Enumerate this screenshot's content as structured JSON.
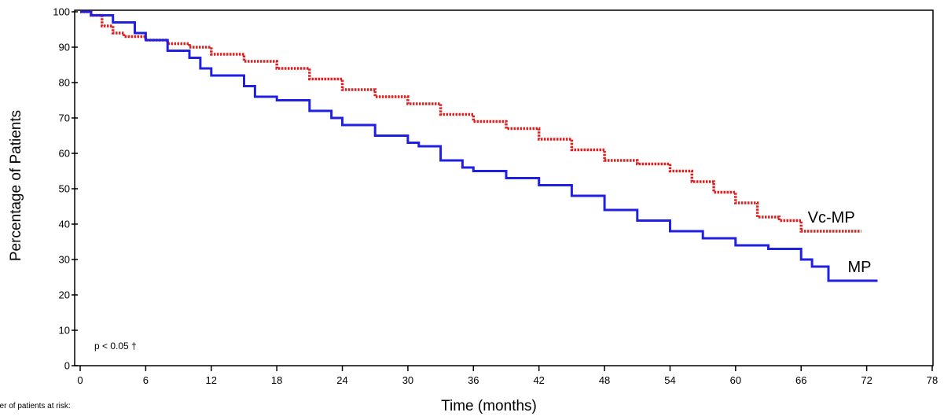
{
  "chart_data": {
    "type": "line",
    "title": "",
    "xlabel": "Time (months)",
    "ylabel": "Percentage of Patients",
    "xlim": [
      0,
      78
    ],
    "ylim": [
      0,
      100
    ],
    "x_ticks": [
      0,
      6,
      12,
      18,
      24,
      30,
      36,
      42,
      48,
      54,
      60,
      66,
      72,
      78
    ],
    "y_ticks": [
      0,
      10,
      20,
      30,
      40,
      50,
      60,
      70,
      80,
      90,
      100
    ],
    "annotation": "p < 0.05 †",
    "footer_text": "ber of patients at risk:",
    "grid": false,
    "step": true,
    "series": [
      {
        "name": "Vc-MP",
        "color": "#e02020",
        "style": "dotted",
        "points": [
          [
            0,
            100
          ],
          [
            1,
            99
          ],
          [
            2,
            96
          ],
          [
            3,
            94
          ],
          [
            4,
            93
          ],
          [
            6,
            92
          ],
          [
            8,
            91
          ],
          [
            10,
            90
          ],
          [
            12,
            88
          ],
          [
            15,
            86
          ],
          [
            18,
            84
          ],
          [
            21,
            81
          ],
          [
            24,
            78
          ],
          [
            27,
            76
          ],
          [
            30,
            74
          ],
          [
            33,
            71
          ],
          [
            36,
            69
          ],
          [
            39,
            67
          ],
          [
            42,
            64
          ],
          [
            45,
            61
          ],
          [
            48,
            58
          ],
          [
            51,
            57
          ],
          [
            54,
            55
          ],
          [
            56,
            52
          ],
          [
            58,
            49
          ],
          [
            60,
            46
          ],
          [
            62,
            42
          ],
          [
            64,
            41
          ],
          [
            66,
            38
          ],
          [
            71.5,
            38
          ]
        ]
      },
      {
        "name": "MP",
        "color": "#2020e0",
        "style": "solid",
        "points": [
          [
            0,
            100
          ],
          [
            1,
            99
          ],
          [
            3,
            97
          ],
          [
            5,
            94
          ],
          [
            6,
            92
          ],
          [
            8,
            89
          ],
          [
            10,
            87
          ],
          [
            11,
            84
          ],
          [
            12,
            82
          ],
          [
            15,
            79
          ],
          [
            16,
            76
          ],
          [
            18,
            75
          ],
          [
            21,
            72
          ],
          [
            23,
            70
          ],
          [
            24,
            68
          ],
          [
            27,
            65
          ],
          [
            30,
            63
          ],
          [
            31,
            62
          ],
          [
            33,
            58
          ],
          [
            35,
            56
          ],
          [
            36,
            55
          ],
          [
            39,
            53
          ],
          [
            42,
            51
          ],
          [
            45,
            48
          ],
          [
            48,
            44
          ],
          [
            51,
            41
          ],
          [
            54,
            38
          ],
          [
            57,
            36
          ],
          [
            60,
            34
          ],
          [
            63,
            33
          ],
          [
            66,
            30
          ],
          [
            67,
            28
          ],
          [
            68.5,
            26
          ],
          [
            68.5,
            24
          ],
          [
            73,
            24
          ]
        ]
      }
    ]
  }
}
